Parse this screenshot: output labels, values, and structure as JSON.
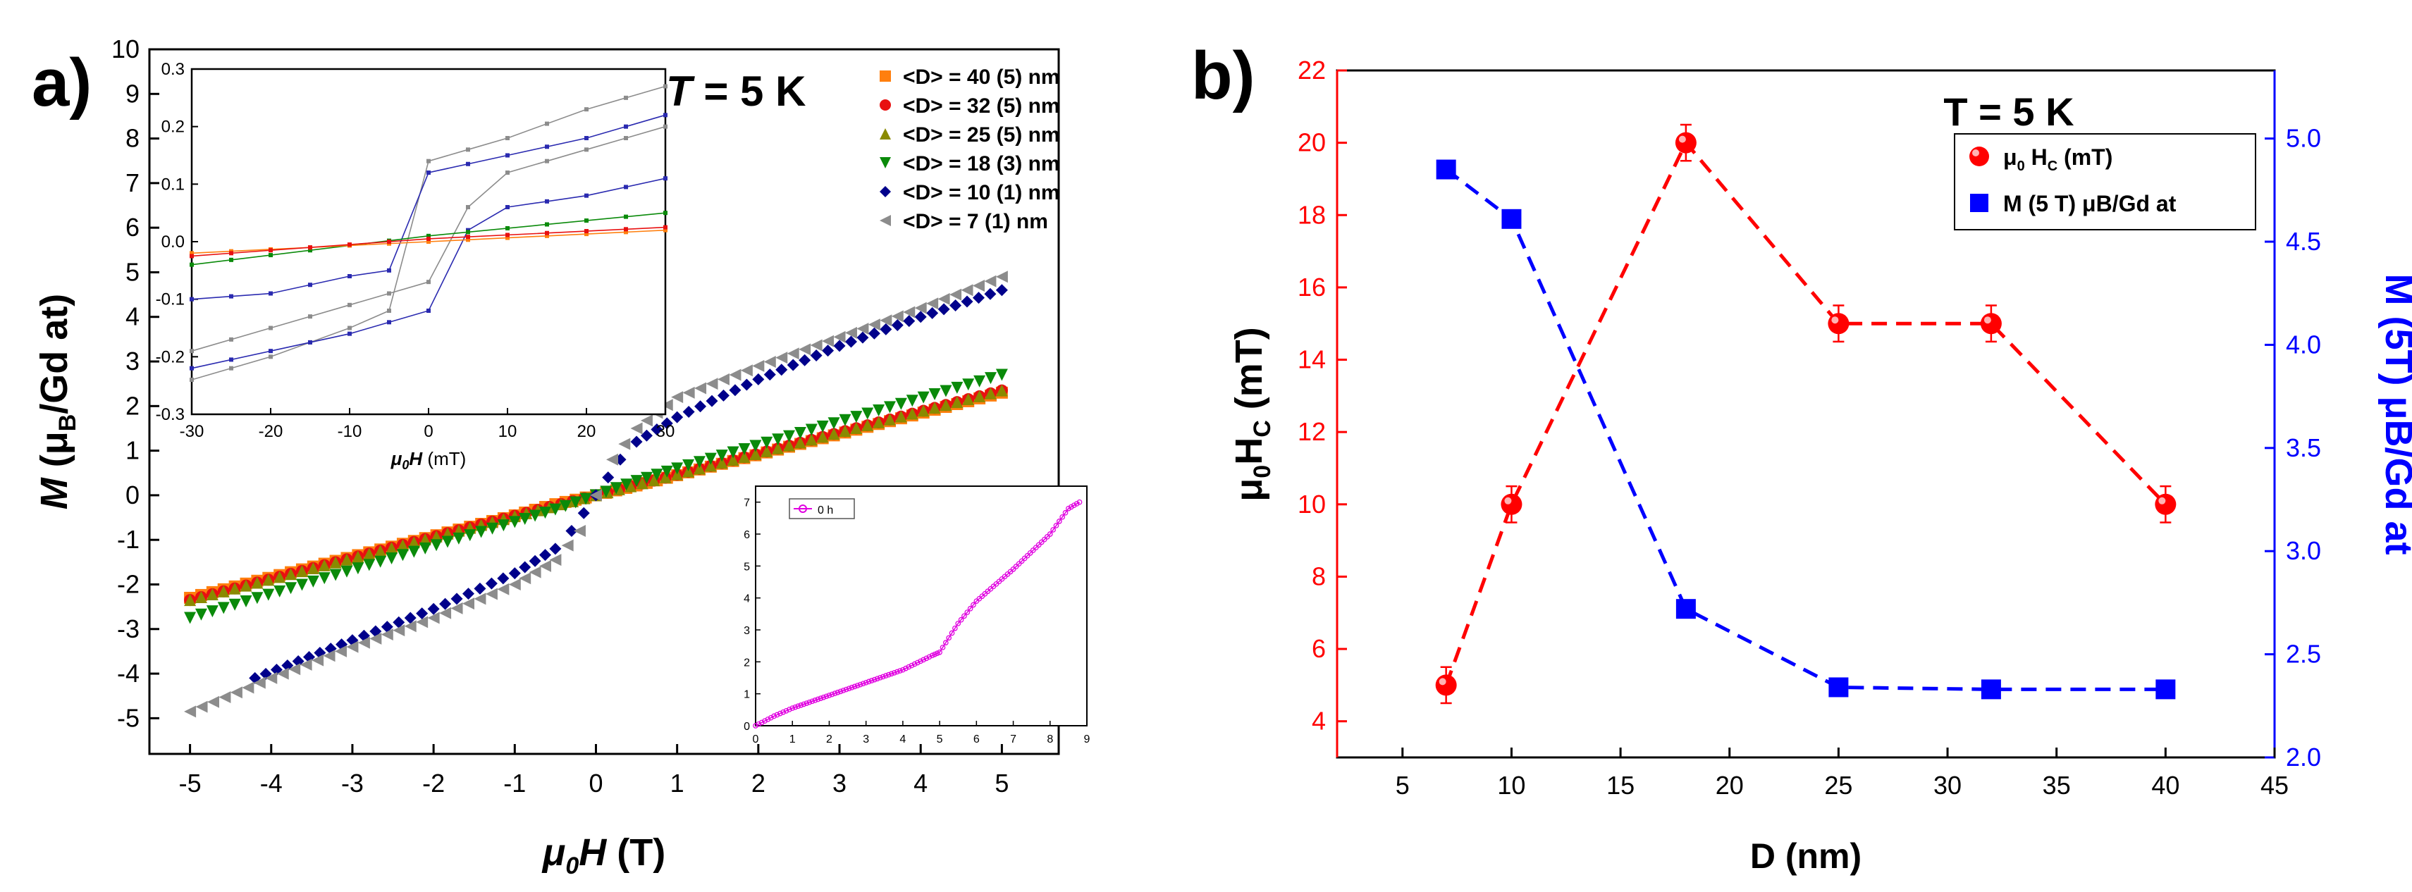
{
  "panel_a": {
    "letter": "a)",
    "temp": {
      "main": "T",
      "rest": " = 5 K"
    },
    "xlabel": {
      "mu": "μ",
      "sub": "0",
      "H": "H",
      "unit": " (T)"
    },
    "ylabel": {
      "M": "M",
      "open": " (μ",
      "sub": "B",
      "rest": "/Gd at)"
    }
  },
  "panel_b": {
    "letter": "b)",
    "temp": "T = 5 K",
    "xlabel": "D (nm)",
    "ylabel_left": {
      "mu": "μ",
      "sub0": "0",
      "H": "H",
      "subC": "C",
      "unit": " (mT)"
    },
    "ylabel_right": "M (5T) μB/Gd at"
  },
  "chart_data": [
    {
      "id": "main-hysteresis",
      "type": "scatter",
      "xlabel": "μ0H (T)",
      "ylabel": "M (μB/Gd at)",
      "xlim": [
        -5.5,
        5.7
      ],
      "ylim": [
        -5.8,
        10
      ],
      "xticks": [
        -5,
        -4,
        -3,
        -2,
        -1,
        0,
        1,
        2,
        3,
        4,
        5
      ],
      "yticks": [
        -5,
        -4,
        -3,
        -2,
        -1,
        0,
        1,
        2,
        3,
        4,
        5,
        6,
        7,
        8,
        9,
        10
      ],
      "series": [
        {
          "name": "<D> = 40 (5) nm",
          "color": "#ff7f0e",
          "marker": "square",
          "points": [
            [
              -5,
              -2.3
            ],
            [
              -1,
              -0.45
            ],
            [
              -0.5,
              -0.2
            ],
            [
              0,
              0
            ],
            [
              0.5,
              0.22
            ],
            [
              1,
              0.45
            ],
            [
              5,
              2.3
            ]
          ]
        },
        {
          "name": "<D> = 32 (5) nm",
          "color": "#e81010",
          "marker": "circle",
          "points": [
            [
              -5,
              -2.35
            ],
            [
              -1,
              -0.46
            ],
            [
              0,
              0
            ],
            [
              1,
              0.46
            ],
            [
              5,
              2.35
            ]
          ]
        },
        {
          "name": "<D> = 25 (5) nm",
          "color": "#8a8a00",
          "marker": "triangle-up",
          "points": [
            [
              -5,
              -2.35
            ],
            [
              -1,
              -0.47
            ],
            [
              0,
              0
            ],
            [
              1,
              0.47
            ],
            [
              5,
              2.35
            ]
          ]
        },
        {
          "name": "<D> = 18 (3) nm",
          "color": "#0a8a0a",
          "marker": "triangle-down",
          "points": [
            [
              -5,
              -2.75
            ],
            [
              -1,
              -0.6
            ],
            [
              -0.5,
              -0.32
            ],
            [
              0,
              0
            ],
            [
              0.5,
              0.32
            ],
            [
              1,
              0.6
            ],
            [
              5,
              2.7
            ]
          ]
        },
        {
          "name": "<D> = 10 (1) nm",
          "color": "#00008b",
          "marker": "diamond",
          "points": [
            [
              -4.2,
              -4.1
            ],
            [
              -3,
              -3.25
            ],
            [
              -2,
              -2.55
            ],
            [
              -1,
              -1.75
            ],
            [
              -0.5,
              -1.2
            ],
            [
              -0.3,
              -0.8
            ],
            [
              0,
              0
            ],
            [
              0.3,
              0.8
            ],
            [
              0.5,
              1.2
            ],
            [
              1,
              1.75
            ],
            [
              2,
              2.6
            ],
            [
              3,
              3.35
            ],
            [
              4,
              4.0
            ],
            [
              5,
              4.6
            ]
          ]
        },
        {
          "name": "<D> = 7 (1) nm",
          "color": "#8c8c8c",
          "marker": "triangle-left",
          "points": [
            [
              -5,
              -4.85
            ],
            [
              -4,
              -4.1
            ],
            [
              -3,
              -3.4
            ],
            [
              -2,
              -2.75
            ],
            [
              -1,
              -2.0
            ],
            [
              -0.5,
              -1.45
            ],
            [
              -0.2,
              -0.8
            ],
            [
              0,
              0
            ],
            [
              0.2,
              0.8
            ],
            [
              0.5,
              1.5
            ],
            [
              1,
              2.2
            ],
            [
              2,
              2.9
            ],
            [
              3,
              3.55
            ],
            [
              4,
              4.2
            ],
            [
              5,
              4.9
            ]
          ]
        }
      ]
    },
    {
      "id": "inset-low-field",
      "type": "line",
      "xlabel": "μ0H (mT)",
      "xlim": [
        -30,
        30
      ],
      "ylim": [
        -0.3,
        0.3
      ],
      "xticks": [
        -30,
        -20,
        -10,
        0,
        10,
        20,
        30
      ],
      "yticks": [
        -0.3,
        -0.2,
        -0.1,
        0.0,
        0.1,
        0.2,
        0.3
      ],
      "series": [
        {
          "name": "gray upper branch",
          "color": "#8c8c8c",
          "points": [
            [
              -30,
              -0.24
            ],
            [
              -20,
              -0.2
            ],
            [
              -10,
              -0.15
            ],
            [
              -5,
              -0.12
            ],
            [
              0,
              0.14
            ],
            [
              5,
              0.16
            ],
            [
              10,
              0.18
            ],
            [
              20,
              0.23
            ],
            [
              30,
              0.27
            ]
          ]
        },
        {
          "name": "gray lower branch",
          "color": "#8c8c8c",
          "points": [
            [
              -30,
              -0.19
            ],
            [
              -20,
              -0.15
            ],
            [
              -10,
              -0.11
            ],
            [
              0,
              -0.07
            ],
            [
              5,
              0.06
            ],
            [
              10,
              0.12
            ],
            [
              20,
              0.16
            ],
            [
              30,
              0.2
            ]
          ]
        },
        {
          "name": "blue upper branch",
          "color": "#2a2ab0",
          "points": [
            [
              -30,
              -0.1
            ],
            [
              -20,
              -0.09
            ],
            [
              -10,
              -0.06
            ],
            [
              -5,
              -0.05
            ],
            [
              0,
              0.12
            ],
            [
              10,
              0.15
            ],
            [
              20,
              0.18
            ],
            [
              30,
              0.22
            ]
          ]
        },
        {
          "name": "blue lower branch",
          "color": "#2a2ab0",
          "points": [
            [
              -30,
              -0.22
            ],
            [
              -20,
              -0.19
            ],
            [
              -10,
              -0.16
            ],
            [
              0,
              -0.12
            ],
            [
              5,
              0.02
            ],
            [
              10,
              0.06
            ],
            [
              20,
              0.08
            ],
            [
              30,
              0.11
            ]
          ]
        },
        {
          "name": "green",
          "color": "#0a8a0a",
          "points": [
            [
              -30,
              -0.04
            ],
            [
              0,
              0.01
            ],
            [
              30,
              0.05
            ]
          ]
        },
        {
          "name": "orange",
          "color": "#ff7f0e",
          "points": [
            [
              -30,
              -0.02
            ],
            [
              0,
              0
            ],
            [
              30,
              0.02
            ]
          ]
        },
        {
          "name": "red",
          "color": "#e81010",
          "points": [
            [
              -30,
              -0.025
            ],
            [
              0,
              0.005
            ],
            [
              30,
              0.025
            ]
          ]
        }
      ]
    },
    {
      "id": "inset-time",
      "type": "line",
      "legend": "0 h",
      "xlim": [
        0,
        9
      ],
      "ylim": [
        0,
        7.5
      ],
      "xticks": [
        0,
        1,
        2,
        3,
        4,
        5,
        6,
        7,
        8,
        9
      ],
      "yticks": [
        0,
        1,
        2,
        3,
        4,
        5,
        6,
        7
      ],
      "series": [
        {
          "name": "0 h",
          "color": "#e000e0",
          "points": [
            [
              0,
              0
            ],
            [
              0.5,
              0.3
            ],
            [
              1,
              0.55
            ],
            [
              2,
              0.95
            ],
            [
              3,
              1.35
            ],
            [
              4,
              1.75
            ],
            [
              4.8,
              2.2
            ],
            [
              5,
              2.3
            ],
            [
              5.5,
              3.2
            ],
            [
              6,
              3.9
            ],
            [
              7,
              4.9
            ],
            [
              8,
              6.0
            ],
            [
              8.5,
              6.8
            ],
            [
              8.8,
              7.0
            ]
          ]
        }
      ]
    },
    {
      "id": "coercivity-vs-size",
      "type": "line",
      "xlabel": "D (nm)",
      "ylabel_left": "μ0HC (mT)",
      "ylabel_right": "M (5T) μB/Gd at",
      "xlim": [
        2,
        45
      ],
      "ylim_left": [
        3,
        22
      ],
      "ylim_right": [
        2.0,
        5.33
      ],
      "xticks": [
        5,
        10,
        15,
        20,
        25,
        30,
        35,
        40,
        45
      ],
      "yticks_left": [
        4,
        6,
        8,
        10,
        12,
        14,
        16,
        18,
        20,
        22
      ],
      "yticks_right": [
        2.0,
        2.5,
        3.0,
        3.5,
        4.0,
        4.5,
        5.0
      ],
      "series": [
        {
          "name": "μ0 HC (mT)",
          "axis": "left",
          "color": "#ff0000",
          "marker": "circle",
          "x": [
            7,
            10,
            18,
            25,
            32,
            40
          ],
          "values": [
            5,
            10,
            20,
            15,
            15,
            10
          ],
          "err": [
            0.5,
            0.5,
            0.5,
            0.5,
            0.5,
            0.5
          ]
        },
        {
          "name": "M (5 T) μB/Gd at",
          "axis": "right",
          "color": "#0000ff",
          "marker": "square",
          "x": [
            7,
            10,
            18,
            25,
            32,
            40
          ],
          "values": [
            4.85,
            4.61,
            2.72,
            2.34,
            2.33,
            2.33
          ]
        }
      ]
    }
  ]
}
